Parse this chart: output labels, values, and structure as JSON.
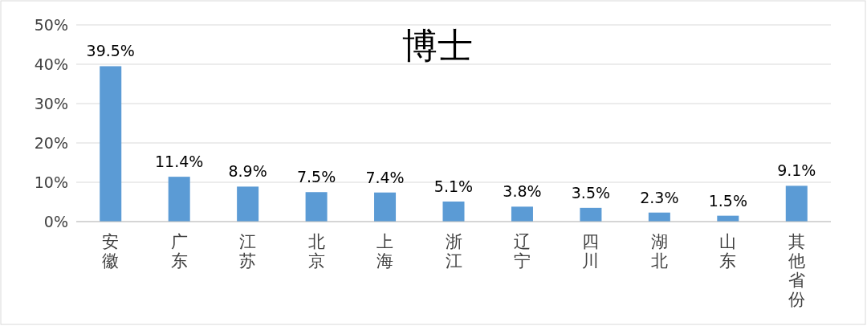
{
  "chart_data": {
    "type": "bar",
    "title": "博士",
    "categories": [
      "安徽",
      "广东",
      "江苏",
      "北京",
      "上海",
      "浙江",
      "辽宁",
      "四川",
      "湖北",
      "山东",
      "其他省份"
    ],
    "values": [
      39.5,
      11.4,
      8.9,
      7.5,
      7.4,
      5.1,
      3.8,
      3.5,
      2.3,
      1.5,
      9.1
    ],
    "value_labels": [
      "39.5%",
      "11.4%",
      "8.9%",
      "7.5%",
      "7.4%",
      "5.1%",
      "3.8%",
      "3.5%",
      "2.3%",
      "1.5%",
      "9.1%"
    ],
    "color": "#5b9bd5",
    "ylim": [
      0,
      50
    ],
    "yticks": [
      {
        "value": 0,
        "label": "0%"
      },
      {
        "value": 10,
        "label": "10%"
      },
      {
        "value": 20,
        "label": "20%"
      },
      {
        "value": 30,
        "label": "30%"
      },
      {
        "value": 40,
        "label": "40%"
      },
      {
        "value": 50,
        "label": "50%"
      }
    ],
    "grid": "y"
  }
}
